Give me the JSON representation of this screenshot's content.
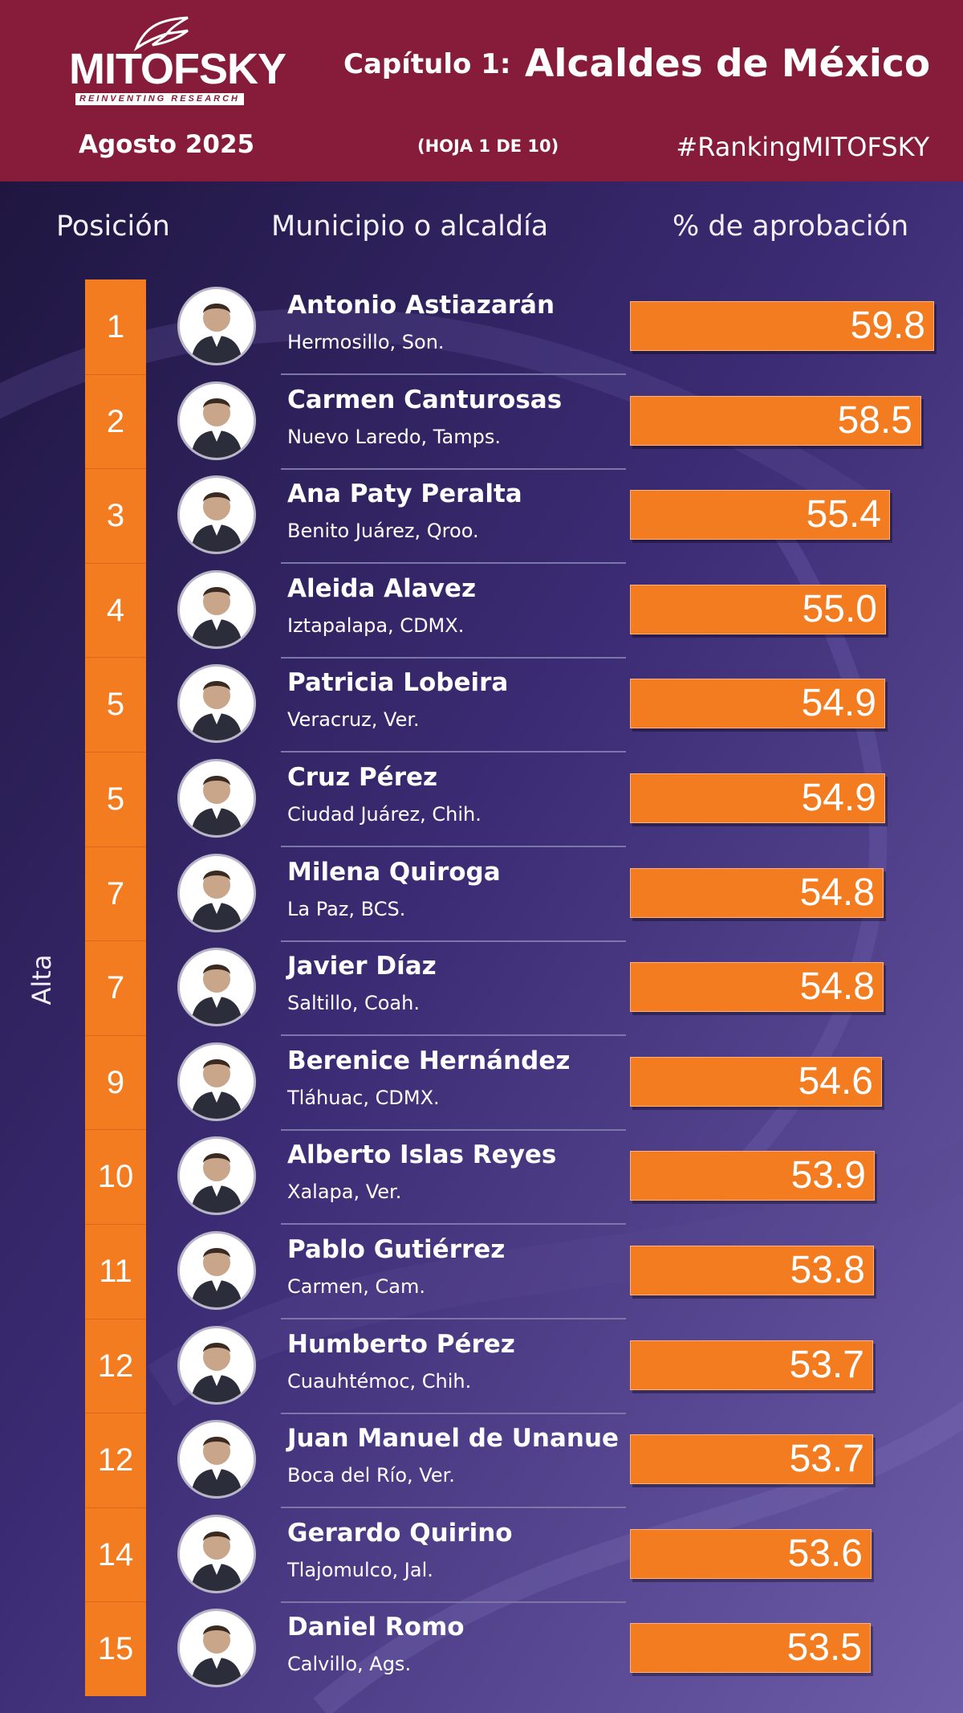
{
  "header": {
    "logo_text": "MITOFSKY",
    "logo_tagline": "REINVENTING RESEARCH",
    "chapter": "Capítulo 1:",
    "title": "Alcaldes de México",
    "date": "Agosto  2025",
    "sheet": "(HOJA 1 DE 10)",
    "hashtag": "#RankingMITOFSKY"
  },
  "columns": {
    "position": "Posición",
    "municipality": "Municipio o alcaldía",
    "approval": "% de aprobación"
  },
  "side_label": "Alta",
  "colors": {
    "header_bg": "#861c39",
    "accent_orange": "#f47c20",
    "background": "#2a1f52"
  },
  "chart_data": {
    "type": "bar",
    "orientation": "horizontal",
    "xlabel": "% de aprobación",
    "rows": [
      {
        "rank": "1",
        "name": "Antonio Astiazarán",
        "place": "Hermosillo, Son.",
        "value": 59.8
      },
      {
        "rank": "2",
        "name": "Carmen Canturosas",
        "place": "Nuevo Laredo, Tamps.",
        "value": 58.5
      },
      {
        "rank": "3",
        "name": "Ana Paty Peralta",
        "place": "Benito Juárez, Qroo.",
        "value": 55.4
      },
      {
        "rank": "4",
        "name": "Aleida Alavez",
        "place": "Iztapalapa, CDMX.",
        "value": 55.0
      },
      {
        "rank": "5",
        "name": "Patricia Lobeira",
        "place": "Veracruz, Ver.",
        "value": 54.9
      },
      {
        "rank": "5",
        "name": "Cruz Pérez",
        "place": "Ciudad Juárez, Chih.",
        "value": 54.9
      },
      {
        "rank": "7",
        "name": "Milena Quiroga",
        "place": "La Paz, BCS.",
        "value": 54.8
      },
      {
        "rank": "7",
        "name": "Javier Díaz",
        "place": "Saltillo, Coah.",
        "value": 54.8
      },
      {
        "rank": "9",
        "name": "Berenice Hernández",
        "place": "Tláhuac, CDMX.",
        "value": 54.6
      },
      {
        "rank": "10",
        "name": "Alberto Islas Reyes",
        "place": "Xalapa, Ver.",
        "value": 53.9
      },
      {
        "rank": "11",
        "name": "Pablo Gutiérrez",
        "place": "Carmen, Cam.",
        "value": 53.8
      },
      {
        "rank": "12",
        "name": "Humberto Pérez",
        "place": "Cuauhtémoc, Chih.",
        "value": 53.7
      },
      {
        "rank": "12",
        "name": "Juan Manuel de Unanue",
        "place": "Boca del Río, Ver.",
        "value": 53.7
      },
      {
        "rank": "14",
        "name": "Gerardo Quirino",
        "place": "Tlajomulco, Jal.",
        "value": 53.6
      },
      {
        "rank": "15",
        "name": "Daniel Romo",
        "place": "Calvillo, Ags.",
        "value": 53.5
      }
    ]
  }
}
